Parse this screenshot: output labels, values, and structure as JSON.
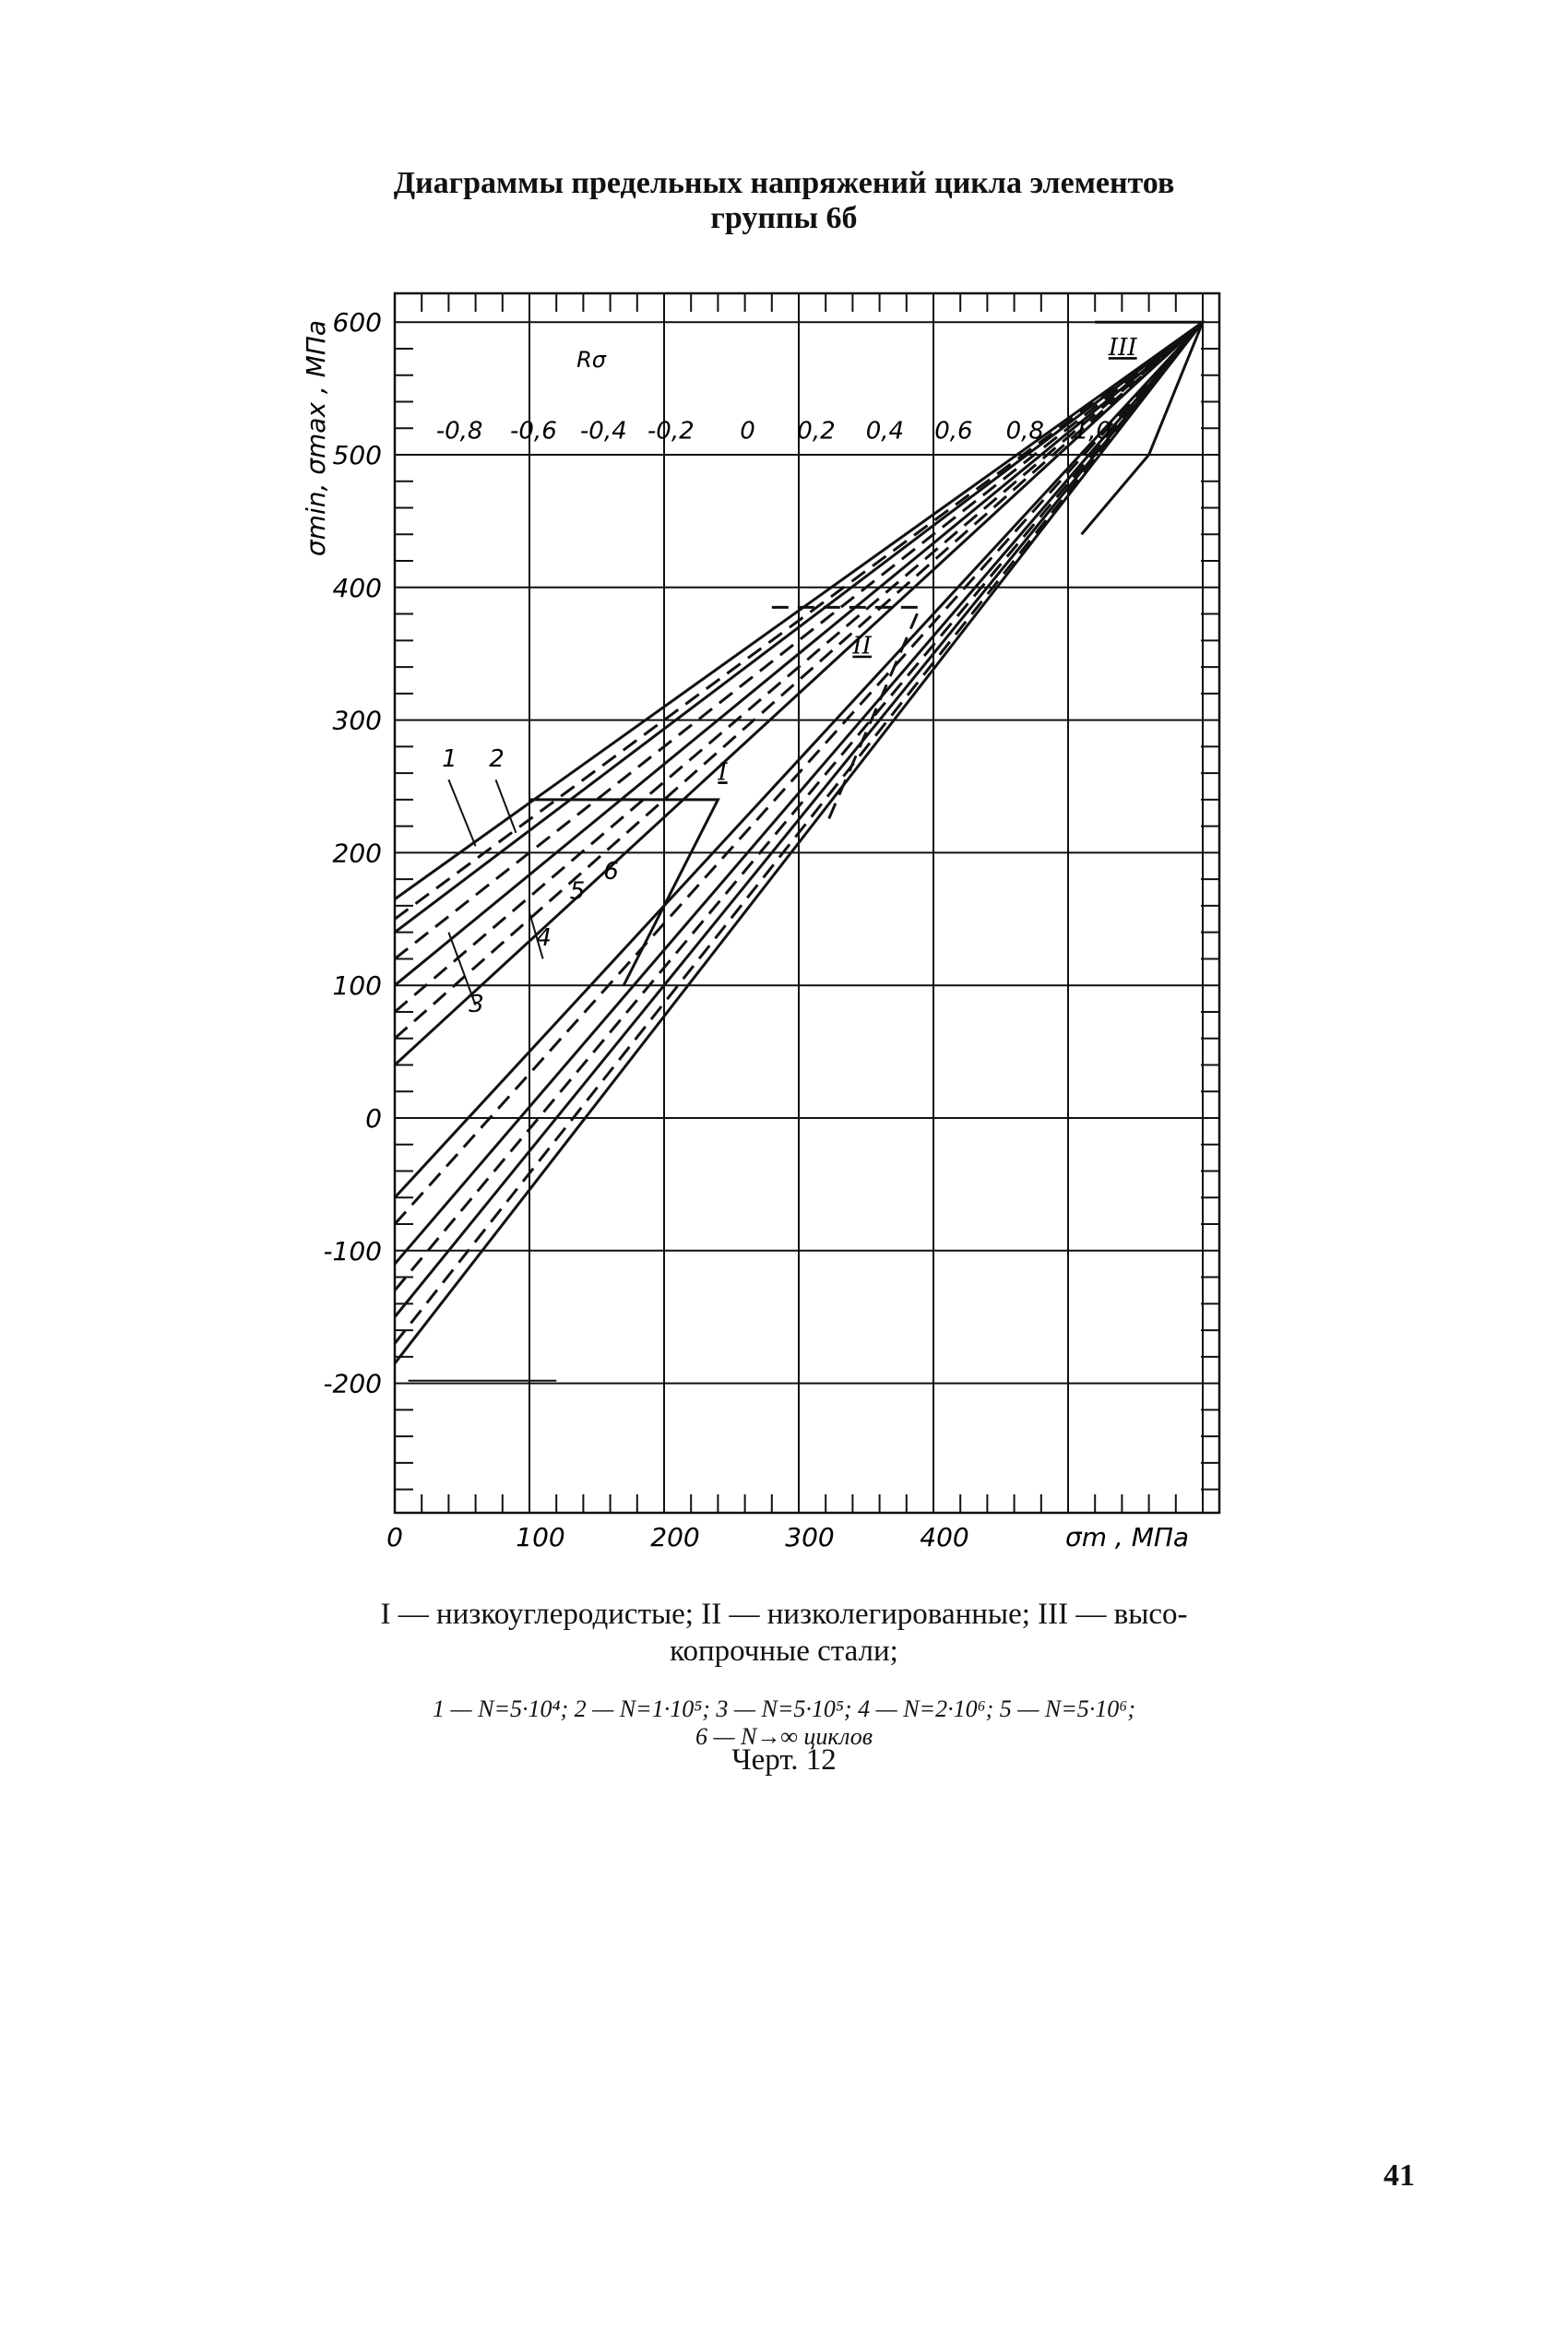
{
  "title": {
    "line1": "Диаграммы предельных напряжений цикла элементов",
    "line2": "группы 6б"
  },
  "chart_data": {
    "type": "line",
    "y_axis_label": "σmin, σmax , МПа",
    "x_axis_label": "σm , МПа",
    "ratio_label": "Rσ",
    "x_ticks": [
      "0",
      "100",
      "200",
      "300",
      "400"
    ],
    "y_ticks": [
      "600",
      "500",
      "400",
      "300",
      "200",
      "100",
      "0",
      "-100",
      "-200"
    ],
    "r_ticks": [
      "-0,8",
      "-0,6",
      "-0,4",
      "-0,2",
      "0",
      "0,2",
      "0,4",
      "0,6",
      "0,8",
      "1,0"
    ],
    "xlim": [
      0,
      600
    ],
    "ylim": [
      -300,
      600
    ],
    "grid": true,
    "group_labels": [
      "I",
      "II",
      "III"
    ],
    "curve_labels": [
      "1",
      "2",
      "3",
      "4",
      "5",
      "6"
    ]
  },
  "legend": {
    "groups_line1": "I — низкоуглеродистые; II — низколегированные; III — высо-",
    "groups_line2": "копрочные стали;",
    "cycles_line1": "1 — N=5·10⁴; 2 — N=1·10⁵; 3 — N=5·10⁵; 4 — N=2·10⁶; 5 — N=5·10⁶;",
    "cycles_line2": "6 — N→∞ циклов"
  },
  "caption": "Черт. 12",
  "page_number": "41"
}
